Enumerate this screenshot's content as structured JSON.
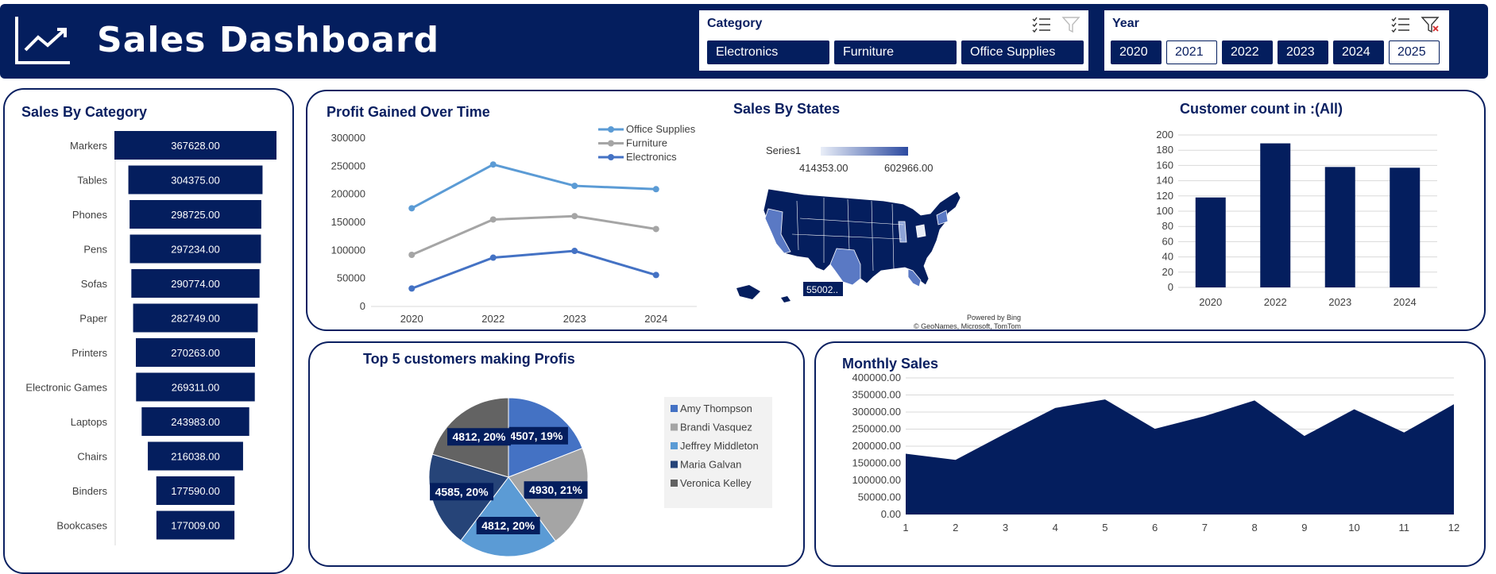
{
  "header": {
    "title": "Sales Dashboard"
  },
  "slicers": {
    "category": {
      "title": "Category",
      "items": [
        {
          "label": "Electronics",
          "selected": true
        },
        {
          "label": "Furniture",
          "selected": true
        },
        {
          "label": "Office Supplies",
          "selected": true
        }
      ]
    },
    "year": {
      "title": "Year",
      "items": [
        {
          "label": "2020",
          "selected": true
        },
        {
          "label": "2021",
          "selected": false
        },
        {
          "label": "2022",
          "selected": true
        },
        {
          "label": "2023",
          "selected": true
        },
        {
          "label": "2024",
          "selected": true
        },
        {
          "label": "2025",
          "selected": false
        }
      ]
    }
  },
  "colors": {
    "navy": "#041e5e",
    "office": "#5b9bd5",
    "furniture": "#a5a5a5",
    "electronics": "#4472c4"
  },
  "titles": {
    "category": "Sales By Category",
    "profit": "Profit  Gained  Over Time",
    "states": "Sales By States",
    "customers": "Customer count in :(All)",
    "top5": "Top 5 customers making Profis",
    "monthly": "Monthly Sales"
  },
  "map": {
    "series": "Series1",
    "min_label": "414353.00",
    "max_label": "602966.00",
    "callout": "55002..",
    "credit1": "Powered by Bing",
    "credit2": "© GeoNames, Microsoft, TomTom"
  },
  "chart_data": [
    {
      "id": "category",
      "type": "bar",
      "title": "Sales By Category",
      "categories": [
        "Markers",
        "Tables",
        "Phones",
        "Pens",
        "Sofas",
        "Paper",
        "Printers",
        "Electronic Games",
        "Laptops",
        "Chairs",
        "Binders",
        "Bookcases"
      ],
      "values": [
        367628,
        304375,
        298725,
        297234,
        290774,
        282749,
        270263,
        269311,
        243983,
        216038,
        177590,
        177009
      ],
      "labels": [
        "367628.00",
        "304375.00",
        "298725.00",
        "297234.00",
        "290774.00",
        "282749.00",
        "270263.00",
        "269311.00",
        "243983.00",
        "216038.00",
        "177590.00",
        "177009.00"
      ]
    },
    {
      "id": "profit",
      "type": "line",
      "title": "Profit  Gained  Over Time",
      "x": [
        "2020",
        "2022",
        "2023",
        "2024"
      ],
      "ylim": [
        0,
        300000
      ],
      "yticks": [
        "0",
        "50000",
        "100000",
        "150000",
        "200000",
        "250000",
        "300000"
      ],
      "series": [
        {
          "name": "Office Supplies",
          "color": "#5b9bd5",
          "values": [
            175000,
            253000,
            215000,
            209000
          ]
        },
        {
          "name": "Furniture",
          "color": "#a5a5a5",
          "values": [
            92000,
            155000,
            161000,
            138000
          ]
        },
        {
          "name": "Electronics",
          "color": "#4472c4",
          "values": [
            32000,
            87000,
            99000,
            56000
          ]
        }
      ]
    },
    {
      "id": "customers",
      "type": "bar",
      "title": "Customer count in :(All)",
      "categories": [
        "2020",
        "2022",
        "2023",
        "2024"
      ],
      "values": [
        118,
        189,
        158,
        157
      ],
      "ylim": [
        0,
        200
      ],
      "yticks": [
        "0",
        "20",
        "40",
        "60",
        "80",
        "100",
        "120",
        "140",
        "160",
        "180",
        "200"
      ]
    },
    {
      "id": "top5",
      "type": "pie",
      "title": "Top 5 customers making Profis",
      "slices": [
        {
          "name": "Amy Thompson",
          "value": 4507,
          "label": "4507, 19%",
          "color": "#4472c4"
        },
        {
          "name": "Brandi Vasquez",
          "value": 4930,
          "label": "4930, 21%",
          "color": "#a5a5a5"
        },
        {
          "name": "Jeffrey Middleton",
          "value": 4812,
          "label": "4812, 20%",
          "color": "#5b9bd5"
        },
        {
          "name": "Maria Galvan",
          "value": 4585,
          "label": "4585, 20%",
          "color": "#264478"
        },
        {
          "name": "Veronica Kelley",
          "value": 4812,
          "label": "4812, 20%",
          "color": "#636363"
        }
      ]
    },
    {
      "id": "monthly",
      "type": "area",
      "title": "Monthly Sales",
      "x": [
        "1",
        "2",
        "3",
        "4",
        "5",
        "6",
        "7",
        "8",
        "9",
        "10",
        "11",
        "12"
      ],
      "values": [
        178000,
        160000,
        237000,
        312000,
        337000,
        251000,
        288000,
        334000,
        230000,
        308000,
        240000,
        323000
      ],
      "ylim": [
        0,
        400000
      ],
      "yticks": [
        "0.00",
        "50000.00",
        "100000.00",
        "150000.00",
        "200000.00",
        "250000.00",
        "300000.00",
        "350000.00",
        "400000.00"
      ]
    }
  ]
}
